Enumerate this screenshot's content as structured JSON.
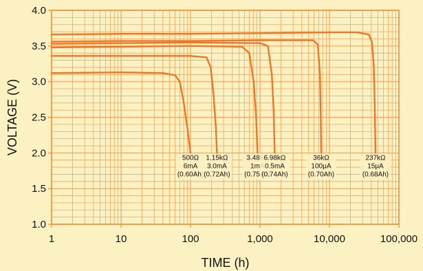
{
  "chart_data": {
    "type": "line",
    "xlabel": "TIME (h)",
    "ylabel": "VOLTAGE (V)",
    "x_scale": "log",
    "xlim": [
      1,
      100000
    ],
    "ylim": [
      1.0,
      4.0
    ],
    "grid": true,
    "x_ticks": [
      {
        "value": 1,
        "label": "1"
      },
      {
        "value": 10,
        "label": "10"
      },
      {
        "value": 100,
        "label": "100"
      },
      {
        "value": 1000,
        "label": "1,000"
      },
      {
        "value": 10000,
        "label": "10,000"
      },
      {
        "value": 100000,
        "label": "100,000"
      }
    ],
    "y_ticks": [
      {
        "value": 1.0,
        "label": "1.0"
      },
      {
        "value": 1.5,
        "label": "1.5"
      },
      {
        "value": 2.0,
        "label": "2.0"
      },
      {
        "value": 2.5,
        "label": "2.5"
      },
      {
        "value": 3.0,
        "label": "3.0"
      },
      {
        "value": 3.5,
        "label": "3.5"
      },
      {
        "value": 4.0,
        "label": "4.0"
      }
    ],
    "series": [
      {
        "labels": [
          "500Ω",
          "6mA",
          "(0.60Ah)"
        ],
        "points": [
          [
            1,
            3.12
          ],
          [
            10,
            3.13
          ],
          [
            40,
            3.12
          ],
          [
            60,
            3.09
          ],
          [
            70,
            3.0
          ],
          [
            80,
            2.7
          ],
          [
            90,
            2.35
          ],
          [
            100,
            2.0
          ]
        ]
      },
      {
        "labels": [
          "1.15kΩ",
          "3.0mA",
          "(0.72Ah)"
        ],
        "points": [
          [
            1,
            3.36
          ],
          [
            10,
            3.36
          ],
          [
            100,
            3.36
          ],
          [
            170,
            3.34
          ],
          [
            195,
            3.2
          ],
          [
            215,
            2.8
          ],
          [
            232,
            2.35
          ],
          [
            240,
            2.0
          ]
        ]
      },
      {
        "labels": [
          "3.48kΩ",
          "1mA",
          "(0.75Ah)"
        ],
        "points": [
          [
            1,
            3.48
          ],
          [
            10,
            3.49
          ],
          [
            100,
            3.5
          ],
          [
            550,
            3.49
          ],
          [
            700,
            3.4
          ],
          [
            810,
            3.0
          ],
          [
            880,
            2.5
          ],
          [
            920,
            2.0
          ]
        ]
      },
      {
        "labels": [
          "6.98kΩ",
          "0.5mA",
          "(0.74Ah)"
        ],
        "points": [
          [
            1,
            3.53
          ],
          [
            10,
            3.54
          ],
          [
            100,
            3.55
          ],
          [
            1000,
            3.54
          ],
          [
            1300,
            3.5
          ],
          [
            1480,
            3.1
          ],
          [
            1570,
            2.6
          ],
          [
            1630,
            2.0
          ]
        ]
      },
      {
        "labels": [
          "36kΩ",
          "100μA",
          "(0.70Ah)"
        ],
        "points": [
          [
            1,
            3.56
          ],
          [
            10,
            3.57
          ],
          [
            100,
            3.57
          ],
          [
            1000,
            3.58
          ],
          [
            5800,
            3.58
          ],
          [
            6800,
            3.52
          ],
          [
            7300,
            3.1
          ],
          [
            7500,
            2.5
          ],
          [
            7600,
            2.0
          ]
        ]
      },
      {
        "labels": [
          "237kΩ",
          "15μA",
          "(0.68Ah)"
        ],
        "points": [
          [
            1,
            3.66
          ],
          [
            10,
            3.67
          ],
          [
            100,
            3.67
          ],
          [
            1000,
            3.68
          ],
          [
            10000,
            3.69
          ],
          [
            25000,
            3.69
          ],
          [
            37000,
            3.66
          ],
          [
            41000,
            3.55
          ],
          [
            43500,
            3.2
          ],
          [
            45000,
            2.6
          ],
          [
            46000,
            2.0
          ]
        ]
      }
    ]
  },
  "colors": {
    "background": "#fbf1c2",
    "grid": "#f2a55a",
    "axis": "#ee8a2e",
    "series": "#ee7626"
  }
}
